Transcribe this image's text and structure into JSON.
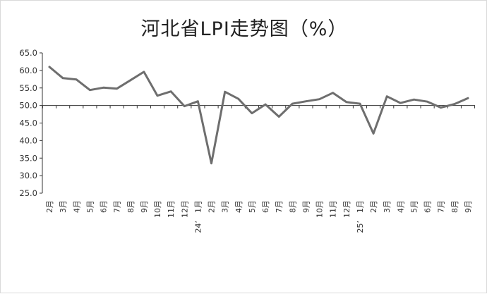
{
  "chart_data": {
    "type": "line",
    "title": "河北省LPI走势图（%）",
    "xlabel": "",
    "ylabel": "",
    "ylim": [
      25.0,
      65.0
    ],
    "yticks": [
      "65.0",
      "60.0",
      "55.0",
      "50.0",
      "45.0",
      "40.0",
      "35.0",
      "30.0",
      "25.0"
    ],
    "baseline": 50.0,
    "grid": false,
    "legend": "none",
    "line_color": "#6e6e6e",
    "categories": [
      "2月",
      "3月",
      "4月",
      "5月",
      "6月",
      "7月",
      "8月",
      "9月",
      "10月",
      "11月",
      "12月",
      "1月",
      "2月",
      "3月",
      "4月",
      "5月",
      "6月",
      "7月",
      "8月",
      "9月",
      "10月",
      "11月",
      "12月",
      "1月",
      "2月",
      "3月",
      "4月",
      "5月",
      "6月",
      "7月",
      "8月",
      "9月"
    ],
    "year_labels": [
      {
        "index": 11,
        "text": "24’"
      },
      {
        "index": 23,
        "text": "25’"
      }
    ],
    "series": [
      {
        "values": [
          61.0,
          57.8,
          57.4,
          54.4,
          55.1,
          54.8,
          57.2,
          59.6,
          52.8,
          54.0,
          49.8,
          51.2,
          33.5,
          53.9,
          51.9,
          47.8,
          50.3,
          46.8,
          50.5,
          51.2,
          51.8,
          53.6,
          51.0,
          50.5,
          42.0,
          52.6,
          50.7,
          51.7,
          51.1,
          49.4,
          50.4,
          52.1
        ]
      }
    ]
  }
}
